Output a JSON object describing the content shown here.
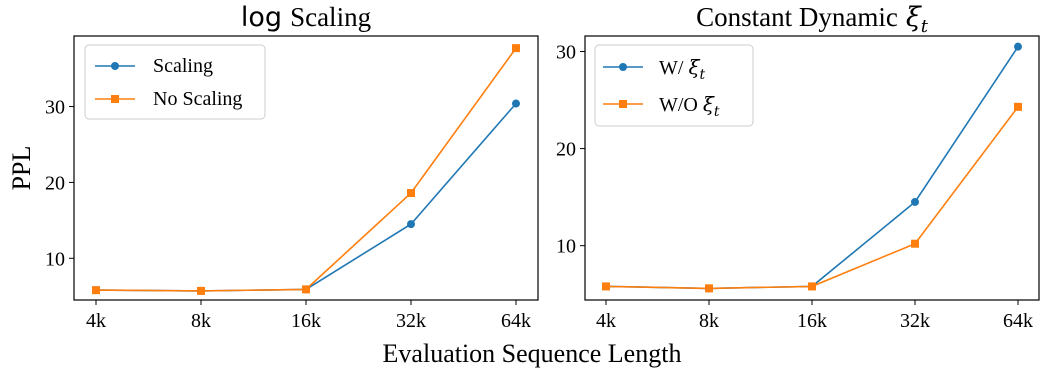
{
  "figure": {
    "xlabel": "Evaluation Sequence Length",
    "ylabel": "PPL"
  },
  "chart_data": [
    {
      "type": "line",
      "title_prefix": "log",
      "title_rest": "Scaling",
      "xlabel": "Evaluation Sequence Length",
      "ylabel": "PPL",
      "categories": [
        "4k",
        "8k",
        "16k",
        "32k",
        "64k"
      ],
      "ylim": [
        4.5,
        39.3
      ],
      "yticks": [
        10,
        20,
        30
      ],
      "grid": false,
      "legend_position": "top-left",
      "series": [
        {
          "name": "Scaling",
          "color": "#1f77b4",
          "marker": "circle",
          "values": [
            5.8,
            5.7,
            5.9,
            14.5,
            30.4
          ]
        },
        {
          "name": "No Scaling",
          "color": "#ff7f0e",
          "marker": "square",
          "values": [
            5.8,
            5.7,
            5.9,
            18.6,
            37.7
          ]
        }
      ]
    },
    {
      "type": "line",
      "title_prefix": "Constant Dynamic",
      "title_symbol": "ξ",
      "title_sub": "t",
      "xlabel": "Evaluation Sequence Length",
      "ylabel": "",
      "categories": [
        "4k",
        "8k",
        "16k",
        "32k",
        "64k"
      ],
      "ylim": [
        4.4,
        31.6
      ],
      "yticks": [
        10,
        20,
        30
      ],
      "grid": false,
      "legend_position": "top-left",
      "series": [
        {
          "name_prefix": "W/ ",
          "name_symbol": "ξ",
          "name_sub": "t",
          "color": "#1f77b4",
          "marker": "circle",
          "values": [
            5.8,
            5.6,
            5.8,
            14.5,
            30.5
          ]
        },
        {
          "name_prefix": "W/O ",
          "name_symbol": "ξ",
          "name_sub": "t",
          "color": "#ff7f0e",
          "marker": "square",
          "values": [
            5.8,
            5.6,
            5.8,
            10.2,
            24.3
          ]
        }
      ]
    }
  ]
}
